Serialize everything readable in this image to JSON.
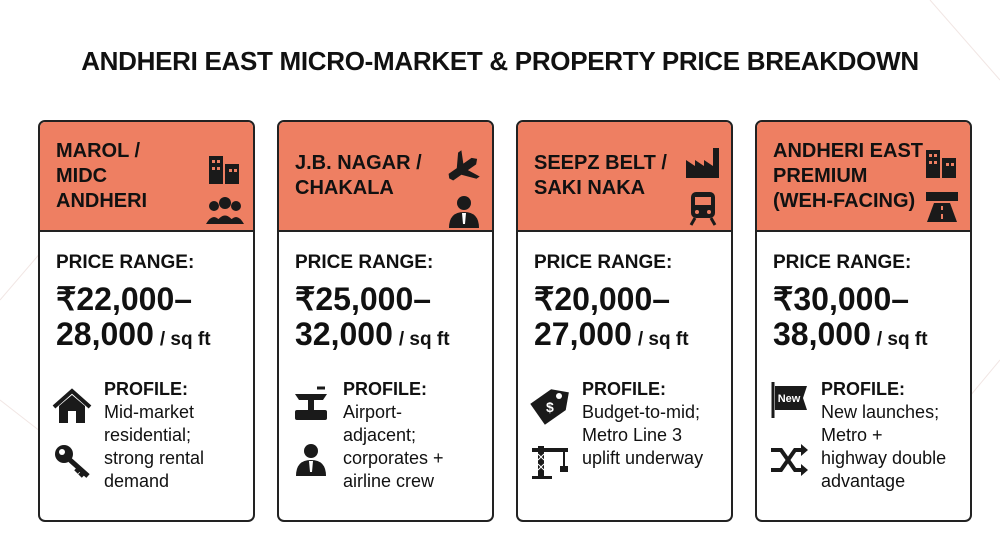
{
  "title": "ANDHERI EAST MICRO-MARKET & PROPERTY PRICE BREAKDOWN",
  "cards": [
    {
      "header": [
        "MAROL /",
        "MIDC",
        "ANDHERI"
      ],
      "price_label": "PRICE RANGE:",
      "price": [
        "₹22,000–",
        "28,000"
      ],
      "unit": "/ sq ft",
      "profile_label": "PROFILE:",
      "profile": [
        "Mid-market",
        "residential;",
        "strong rental",
        "demand"
      ]
    },
    {
      "header": [
        "J.B. NAGAR /",
        "CHAKALA"
      ],
      "price_label": "PRICE RANGE:",
      "price": [
        "₹25,000–",
        "32,000"
      ],
      "unit": "/ sq ft",
      "profile_label": "PROFILE:",
      "profile": [
        "Airport-",
        "adjacent;",
        "corporates +",
        "airline crew"
      ]
    },
    {
      "header": [
        "SEEPZ BELT /",
        "SAKI NAKA"
      ],
      "price_label": "PRICE RANGE:",
      "price": [
        "₹20,000–",
        "27,000"
      ],
      "unit": "/ sq ft",
      "profile_label": "PROFILE:",
      "profile": [
        "Budget-to-mid;",
        "Metro Line 3",
        "uplift underway"
      ]
    },
    {
      "header": [
        "ANDHERI EAST",
        "PREMIUM",
        "(WEH-FACING)"
      ],
      "price_label": "PRICE RANGE:",
      "price": [
        "₹30,000–",
        "38,000"
      ],
      "unit": "/ sq ft",
      "profile_label": "PROFILE:",
      "profile": [
        "New launches;",
        "Metro +",
        "highway double",
        "advantage"
      ],
      "icon_text": "New"
    }
  ]
}
